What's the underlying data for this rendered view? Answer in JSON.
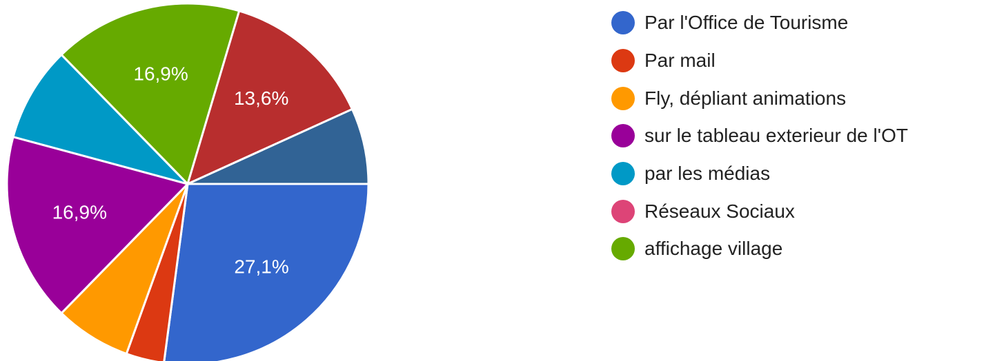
{
  "chart_data": {
    "type": "pie",
    "title": "",
    "legend_position": "right",
    "slices": [
      {
        "label": "Par l'Office de Tourisme",
        "value": 27.1,
        "display_label": "27,1%",
        "color": "#3366cc"
      },
      {
        "label": "Par mail",
        "value": 3.4,
        "display_label": "",
        "color": "#dc3912"
      },
      {
        "label": "Fly, dépliant animations",
        "value": 6.8,
        "display_label": "",
        "color": "#ff9900"
      },
      {
        "label": "sur le tableau exterieur de l'OT",
        "value": 16.9,
        "display_label": "16,9%",
        "color": "#990099"
      },
      {
        "label": "par les médias",
        "value": 8.5,
        "display_label": "",
        "color": "#0099c6"
      },
      {
        "label": "affichage village",
        "value": 16.9,
        "display_label": "16,9%",
        "color": "#66aa00"
      },
      {
        "label": "",
        "value": 13.6,
        "display_label": "13,6%",
        "color": "#b82e2e"
      },
      {
        "label": "",
        "value": 6.8,
        "display_label": "",
        "color": "#316395"
      }
    ],
    "legend": [
      {
        "label": "Par l'Office de Tourisme",
        "color": "#3366cc"
      },
      {
        "label": "Par mail",
        "color": "#dc3912"
      },
      {
        "label": "Fly, dépliant animations",
        "color": "#ff9900"
      },
      {
        "label": "sur le tableau exterieur de l'OT",
        "color": "#990099"
      },
      {
        "label": "par les médias",
        "color": "#0099c6"
      },
      {
        "label": "Réseaux Sociaux",
        "color": "#dd4477"
      },
      {
        "label": "affichage village",
        "color": "#66aa00"
      }
    ]
  }
}
